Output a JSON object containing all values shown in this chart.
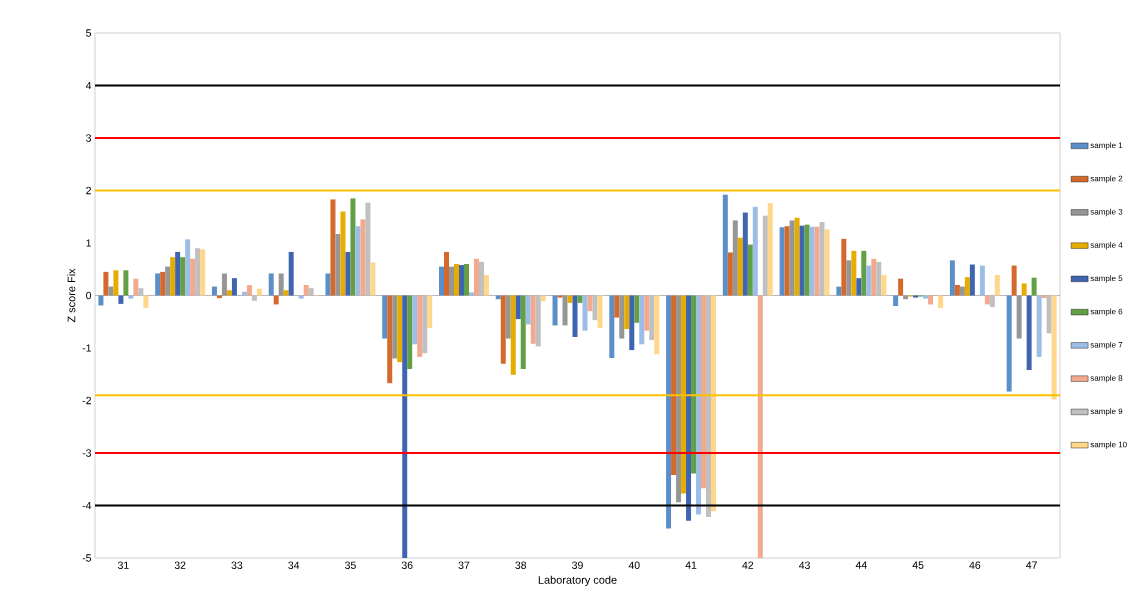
{
  "chart_data": {
    "type": "bar",
    "xlabel": "Laboratory code",
    "ylabel": "Z score  Fix",
    "categories": [
      "31",
      "32",
      "33",
      "34",
      "35",
      "36",
      "37",
      "38",
      "39",
      "40",
      "41",
      "42",
      "43",
      "44",
      "45",
      "46",
      "47"
    ],
    "ylim": [
      -5,
      5
    ],
    "yticks": [
      -5,
      -4,
      -3,
      -2,
      -1,
      0,
      1,
      2,
      3,
      4,
      5
    ],
    "grid": false,
    "legend": "right",
    "series": [
      {
        "name": "sample 1",
        "color": "#5b8fc9",
        "values": [
          -0.19,
          0.42,
          0.17,
          0.42,
          0.42,
          -0.82,
          0.55,
          -0.07,
          -0.57,
          -1.19,
          -4.44,
          1.92,
          1.3,
          0.17,
          -0.2,
          0.67,
          -1.83
        ]
      },
      {
        "name": "sample 2",
        "color": "#d5692c",
        "values": [
          0.45,
          0.45,
          -0.05,
          -0.17,
          1.83,
          -1.67,
          0.83,
          -1.3,
          -0.04,
          -0.42,
          -3.42,
          0.82,
          1.32,
          1.08,
          0.32,
          0.2,
          0.57
        ]
      },
      {
        "name": "sample 3",
        "color": "#969696",
        "values": [
          0.17,
          0.55,
          0.42,
          0.42,
          1.17,
          -1.2,
          0.55,
          -0.82,
          -0.57,
          -0.82,
          -3.94,
          1.43,
          1.43,
          0.67,
          -0.07,
          0.17,
          -0.82
        ]
      },
      {
        "name": "sample 4",
        "color": "#e6ad00",
        "values": [
          0.48,
          0.73,
          0.1,
          0.1,
          1.6,
          -1.27,
          0.6,
          -1.51,
          -0.14,
          -0.64,
          -3.77,
          1.1,
          1.48,
          0.85,
          -0.02,
          0.35,
          0.23
        ]
      },
      {
        "name": "sample 5",
        "color": "#3f65b0",
        "values": [
          -0.16,
          0.83,
          0.33,
          0.83,
          0.83,
          -5,
          0.58,
          -0.45,
          -0.79,
          -1.04,
          -4.29,
          1.58,
          1.33,
          0.33,
          -0.04,
          0.59,
          -1.42
        ]
      },
      {
        "name": "sample 6",
        "color": "#63a045",
        "values": [
          0.48,
          0.73,
          null,
          null,
          1.85,
          -1.4,
          0.6,
          -1.4,
          -0.14,
          -0.52,
          -3.39,
          0.97,
          1.35,
          0.85,
          -0.02,
          null,
          0.34
        ]
      },
      {
        "name": "sample 7",
        "color": "#9cbde5",
        "values": [
          -0.06,
          1.07,
          0.07,
          -0.06,
          1.32,
          -0.93,
          0.06,
          -0.55,
          -0.67,
          -0.93,
          -4.17,
          1.69,
          1.31,
          0.57,
          -0.06,
          0.57,
          -1.17
        ]
      },
      {
        "name": "sample 8",
        "color": "#f2a98e",
        "values": [
          0.32,
          0.7,
          0.2,
          0.2,
          1.45,
          -1.17,
          0.7,
          -0.92,
          -0.3,
          -0.67,
          -3.67,
          -5,
          1.31,
          0.7,
          -0.17,
          -0.17,
          -0.05
        ]
      },
      {
        "name": "sample 9",
        "color": "#c0c0c0",
        "values": [
          0.14,
          0.9,
          -0.1,
          0.14,
          1.77,
          -1.1,
          0.64,
          -0.97,
          -0.47,
          -0.85,
          -4.22,
          1.52,
          1.4,
          0.64,
          null,
          -0.22,
          -0.72
        ]
      },
      {
        "name": "sample 10",
        "color": "#ffd78a",
        "values": [
          -0.24,
          0.88,
          0.13,
          0.01,
          0.63,
          -0.62,
          0.39,
          -0.11,
          -0.62,
          -1.12,
          -4.11,
          1.76,
          1.26,
          0.39,
          -0.24,
          0.39,
          -1.98
        ]
      }
    ],
    "ref_lines": [
      {
        "axis": "y",
        "value": 4,
        "color": "#000000"
      },
      {
        "axis": "y",
        "value": 3,
        "color": "#ff0000"
      },
      {
        "axis": "y",
        "value": 2,
        "color": "#ffc000"
      },
      {
        "axis": "y",
        "value": -1.9,
        "color": "#ffc000"
      },
      {
        "axis": "y",
        "value": -3,
        "color": "#ff0000"
      },
      {
        "axis": "y",
        "value": -4,
        "color": "#000000"
      }
    ]
  }
}
